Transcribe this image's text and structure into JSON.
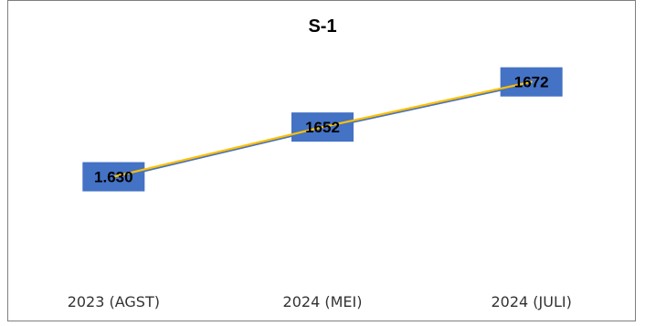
{
  "chart_data": {
    "type": "line",
    "title": "S-1",
    "categories": [
      "2023 (AGST)",
      "2024 (MEI)",
      "2024 (JULI)"
    ],
    "series": [
      {
        "values": [
          1630,
          1652,
          1672
        ],
        "color": "#4472c4"
      },
      {
        "values": [
          1630,
          1652,
          1672
        ],
        "color": "#ffc000"
      }
    ],
    "data_labels": [
      "1.630",
      "1652",
      "1672"
    ],
    "data_label_fill": "#4472c4",
    "ylim": [
      1591,
      1684
    ],
    "grid": false,
    "legend": "none"
  }
}
